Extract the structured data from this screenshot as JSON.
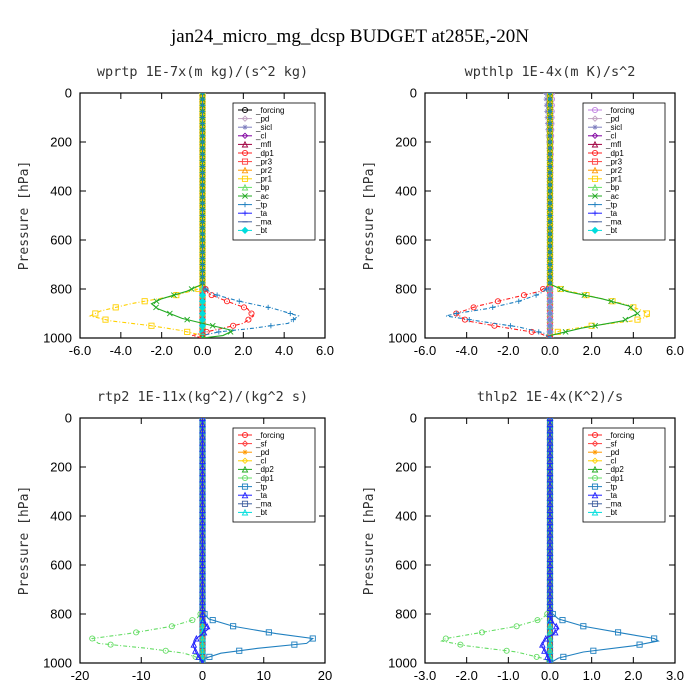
{
  "figure": {
    "title": "jan24_micro_mg_dcsp  BUDGET at285E,-20N"
  },
  "chart_data": [
    {
      "type": "line",
      "title": "wprtp  1E-7x(m kg)/(s^2 kg)",
      "ylabel": "Pressure [hPa]",
      "xlim": [
        -6,
        6
      ],
      "ylim": [
        1000,
        0
      ],
      "xticks": [
        "-6.0",
        "-4.0",
        "-2.0",
        "0.0",
        "2.0",
        "4.0",
        "6.0"
      ],
      "xtick_values": [
        -6,
        -4,
        -2,
        0,
        2,
        4,
        6
      ],
      "yticks": [
        "0",
        "200",
        "400",
        "600",
        "800",
        "1000"
      ],
      "ytick_values": [
        0,
        200,
        400,
        600,
        800,
        1000
      ],
      "legend": {
        "position": "top-right"
      },
      "series": [
        {
          "name": "_forcing",
          "color": "#000000",
          "x": [
            0,
            0,
            0
          ],
          "y": [
            0,
            800,
            1000
          ]
        },
        {
          "name": "_pd",
          "color": "#c0a0c0",
          "x": [
            0,
            0
          ],
          "y": [
            0,
            1000
          ]
        },
        {
          "name": "_sicl",
          "color": "#8080c0",
          "x": [
            0,
            0
          ],
          "y": [
            0,
            1000
          ]
        },
        {
          "name": "_cl",
          "color": "#8000a0",
          "x": [
            0,
            0
          ],
          "y": [
            0,
            1000
          ]
        },
        {
          "name": "_mfl",
          "color": "#a00040",
          "x": [
            0,
            0
          ],
          "y": [
            0,
            1000
          ]
        },
        {
          "name": "_dp1",
          "color": "#ff2020",
          "x": [
            0,
            0,
            0.3,
            1.2,
            2.2,
            2.5,
            2.0,
            1.0,
            0.2,
            -0.5,
            0.0
          ],
          "y": [
            0,
            780,
            820,
            850,
            880,
            910,
            940,
            960,
            975,
            990,
            1000
          ]
        },
        {
          "name": "_pr3",
          "color": "#ff4040",
          "x": [
            0,
            0
          ],
          "y": [
            0,
            1000
          ]
        },
        {
          "name": "_pr2",
          "color": "#ff9900",
          "x": [
            0,
            0
          ],
          "y": [
            0,
            1000
          ]
        },
        {
          "name": "_pr1",
          "color": "#ffd000",
          "x": [
            0,
            0,
            -0.2,
            -1.5,
            -3.5,
            -5.0,
            -5.5,
            -4.5,
            -2.5,
            -1.0,
            0.0
          ],
          "y": [
            0,
            780,
            800,
            830,
            860,
            890,
            910,
            930,
            950,
            970,
            990
          ]
        },
        {
          "name": "_bp",
          "color": "#66dd66",
          "x": [
            0,
            0
          ],
          "y": [
            0,
            1000
          ]
        },
        {
          "name": "_ac",
          "color": "#22aa22",
          "x": [
            0,
            0,
            -0.8,
            -2.0,
            -2.5,
            -2.2,
            -1.0,
            0.5,
            1.5,
            1.0,
            0.0
          ],
          "y": [
            0,
            780,
            810,
            840,
            860,
            880,
            920,
            950,
            970,
            990,
            1000
          ]
        },
        {
          "name": "_tp",
          "color": "#2080c0",
          "x": [
            0,
            0,
            0.5,
            1.8,
            3.5,
            4.7,
            4.2,
            2.5,
            0.8,
            0.0
          ],
          "y": [
            0,
            790,
            820,
            850,
            880,
            910,
            940,
            960,
            975,
            990
          ]
        },
        {
          "name": "_ta",
          "color": "#2020ff",
          "x": [
            0,
            0
          ],
          "y": [
            0,
            1000
          ]
        },
        {
          "name": "_ma",
          "color": "#4060a0",
          "x": [
            0,
            0
          ],
          "y": [
            0,
            1000
          ]
        },
        {
          "name": "_bt",
          "color": "#00dddd",
          "x": [
            0,
            0
          ],
          "y": [
            0,
            1000
          ]
        }
      ]
    },
    {
      "type": "line",
      "title": "wpthlp  1E-4x(m K)/s^2",
      "ylabel": "Pressure [hPa]",
      "xlim": [
        -6,
        6
      ],
      "ylim": [
        1000,
        0
      ],
      "xticks": [
        "-6.0",
        "-4.0",
        "-2.0",
        "0.0",
        "2.0",
        "4.0",
        "6.0"
      ],
      "xtick_values": [
        -6,
        -4,
        -2,
        0,
        2,
        4,
        6
      ],
      "yticks": [
        "0",
        "200",
        "400",
        "600",
        "800",
        "1000"
      ],
      "ytick_values": [
        0,
        200,
        400,
        600,
        800,
        1000
      ],
      "legend": {
        "position": "top-right"
      },
      "series": [
        {
          "name": "_forcing",
          "color": "#c080e0",
          "x": [
            0.1,
            0,
            0
          ],
          "y": [
            0,
            400,
            1000
          ]
        },
        {
          "name": "_pd",
          "color": "#c0a0c0",
          "x": [
            0,
            0
          ],
          "y": [
            0,
            1000
          ]
        },
        {
          "name": "_sicl",
          "color": "#8080c0",
          "x": [
            -0.2,
            0,
            0
          ],
          "y": [
            0,
            300,
            1000
          ]
        },
        {
          "name": "_cl",
          "color": "#8000a0",
          "x": [
            0,
            0
          ],
          "y": [
            0,
            1000
          ]
        },
        {
          "name": "_mfl",
          "color": "#a00040",
          "x": [
            0,
            0
          ],
          "y": [
            0,
            1000
          ]
        },
        {
          "name": "_dp1",
          "color": "#ff2020",
          "x": [
            0,
            0,
            -0.5,
            -2.0,
            -3.5,
            -4.5,
            -4.0,
            -2.0,
            -0.5,
            0.0
          ],
          "y": [
            0,
            780,
            810,
            840,
            870,
            900,
            930,
            960,
            980,
            1000
          ]
        },
        {
          "name": "_pr3",
          "color": "#ff4040",
          "x": [
            0,
            0
          ],
          "y": [
            0,
            1000
          ]
        },
        {
          "name": "_pr2",
          "color": "#ff9900",
          "x": [
            0,
            0
          ],
          "y": [
            0,
            1000
          ]
        },
        {
          "name": "_pr1",
          "color": "#ffd000",
          "x": [
            0,
            0,
            0.5,
            2.0,
            3.5,
            4.5,
            4.8,
            4.0,
            2.0,
            0.5,
            0.0
          ],
          "y": [
            0,
            780,
            800,
            830,
            860,
            890,
            910,
            930,
            950,
            970,
            990
          ]
        },
        {
          "name": "_bp",
          "color": "#66dd66",
          "x": [
            0,
            0
          ],
          "y": [
            0,
            1000
          ]
        },
        {
          "name": "_ac",
          "color": "#22aa22",
          "x": [
            0,
            0,
            0.8,
            2.5,
            3.8,
            4.2,
            3.5,
            1.5,
            0.0
          ],
          "y": [
            0,
            780,
            810,
            840,
            870,
            900,
            930,
            960,
            990
          ]
        },
        {
          "name": "_tp",
          "color": "#2080c0",
          "x": [
            0,
            0,
            -0.5,
            -1.5,
            -3.0,
            -4.5,
            -5.0,
            -3.5,
            -1.5,
            -0.3,
            0.0
          ],
          "y": [
            0,
            790,
            820,
            850,
            880,
            900,
            910,
            930,
            955,
            980,
            1000
          ]
        },
        {
          "name": "_ta",
          "color": "#2020ff",
          "x": [
            0,
            0
          ],
          "y": [
            0,
            1000
          ]
        },
        {
          "name": "_ma",
          "color": "#4060a0",
          "x": [
            0,
            0
          ],
          "y": [
            0,
            1000
          ]
        },
        {
          "name": "_bt",
          "color": "#00dddd",
          "x": [
            0,
            0
          ],
          "y": [
            0,
            1000
          ]
        }
      ]
    },
    {
      "type": "line",
      "title": "rtp2  1E-11x(kg^2)/(kg^2 s)",
      "ylabel": "Pressure [hPa]",
      "xlim": [
        -20,
        20
      ],
      "ylim": [
        1000,
        0
      ],
      "xticks": [
        "-20",
        "-10",
        "0",
        "10",
        "20"
      ],
      "xtick_values": [
        -20,
        -10,
        0,
        10,
        20
      ],
      "yticks": [
        "0",
        "200",
        "400",
        "600",
        "800",
        "1000"
      ],
      "ytick_values": [
        0,
        200,
        400,
        600,
        800,
        1000
      ],
      "legend": {
        "position": "top-right"
      },
      "series": [
        {
          "name": "_forcing",
          "color": "#ff2020",
          "x": [
            0,
            0
          ],
          "y": [
            0,
            1000
          ]
        },
        {
          "name": "_sf",
          "color": "#ff4040",
          "x": [
            0,
            0
          ],
          "y": [
            0,
            1000
          ]
        },
        {
          "name": "_pd",
          "color": "#ff9900",
          "x": [
            0,
            0
          ],
          "y": [
            0,
            1000
          ]
        },
        {
          "name": "_cl",
          "color": "#ffd000",
          "x": [
            0,
            0
          ],
          "y": [
            0,
            1000
          ]
        },
        {
          "name": "_dp2",
          "color": "#22aa22",
          "x": [
            0,
            0
          ],
          "y": [
            0,
            1000
          ]
        },
        {
          "name": "_dp1",
          "color": "#66dd66",
          "x": [
            0,
            0,
            -1.0,
            -5.0,
            -12.0,
            -18.0,
            -17.0,
            -9.0,
            -3.0,
            -0.5,
            0.0
          ],
          "y": [
            0,
            790,
            820,
            850,
            880,
            900,
            920,
            940,
            960,
            980,
            1000
          ]
        },
        {
          "name": "_tp",
          "color": "#2080c0",
          "x": [
            0,
            0,
            1.0,
            5.0,
            12.0,
            18.0,
            17.0,
            9.0,
            3.0,
            0.5,
            0.0
          ],
          "y": [
            0,
            790,
            820,
            850,
            880,
            900,
            920,
            940,
            960,
            980,
            1000
          ]
        },
        {
          "name": "_ta",
          "color": "#2020ff",
          "x": [
            0,
            0,
            0.5,
            1.0,
            0.0,
            -1.0,
            -1.5,
            -1.0,
            0.0
          ],
          "y": [
            0,
            820,
            840,
            860,
            880,
            900,
            930,
            960,
            1000
          ]
        },
        {
          "name": "_ma",
          "color": "#4060a0",
          "x": [
            0,
            0
          ],
          "y": [
            0,
            1000
          ]
        },
        {
          "name": "_bt",
          "color": "#00dddd",
          "x": [
            0,
            0
          ],
          "y": [
            0,
            1000
          ]
        }
      ]
    },
    {
      "type": "line",
      "title": "thlp2  1E-4x(K^2)/s",
      "ylabel": "Pressure [hPa]",
      "xlim": [
        -3,
        3
      ],
      "ylim": [
        1000,
        0
      ],
      "xticks": [
        "-3.0",
        "-2.0",
        "-1.0",
        "0.0",
        "1.0",
        "2.0",
        "3.0"
      ],
      "xtick_values": [
        -3,
        -2,
        -1,
        0,
        1,
        2,
        3
      ],
      "yticks": [
        "0",
        "200",
        "400",
        "600",
        "800",
        "1000"
      ],
      "ytick_values": [
        0,
        200,
        400,
        600,
        800,
        1000
      ],
      "legend": {
        "position": "top-right"
      },
      "series": [
        {
          "name": "_forcing",
          "color": "#ff2020",
          "x": [
            0,
            0
          ],
          "y": [
            0,
            1000
          ]
        },
        {
          "name": "_sf",
          "color": "#ff4040",
          "x": [
            0,
            0
          ],
          "y": [
            0,
            1000
          ]
        },
        {
          "name": "_pd",
          "color": "#ff9900",
          "x": [
            0,
            0
          ],
          "y": [
            0,
            1000
          ]
        },
        {
          "name": "_cl",
          "color": "#ffd000",
          "x": [
            0,
            0
          ],
          "y": [
            0,
            1000
          ]
        },
        {
          "name": "_dp2",
          "color": "#22aa22",
          "x": [
            0,
            0
          ],
          "y": [
            0,
            1000
          ]
        },
        {
          "name": "_dp1",
          "color": "#66dd66",
          "x": [
            0,
            0,
            -0.2,
            -0.8,
            -1.8,
            -2.5,
            -2.6,
            -2.0,
            -0.8,
            -0.2,
            0.0
          ],
          "y": [
            0,
            790,
            820,
            850,
            880,
            900,
            910,
            930,
            955,
            980,
            1000
          ]
        },
        {
          "name": "_tp",
          "color": "#2080c0",
          "x": [
            0,
            0,
            0.2,
            0.8,
            1.8,
            2.5,
            2.6,
            2.0,
            0.8,
            0.2,
            0.0
          ],
          "y": [
            0,
            790,
            820,
            850,
            880,
            900,
            910,
            930,
            955,
            980,
            1000
          ]
        },
        {
          "name": "_ta",
          "color": "#2020ff",
          "x": [
            0,
            0,
            0.1,
            0.2,
            0.1,
            -0.1,
            -0.2,
            -0.1,
            0.0
          ],
          "y": [
            0,
            820,
            840,
            860,
            880,
            900,
            930,
            960,
            1000
          ]
        },
        {
          "name": "_ma",
          "color": "#4060a0",
          "x": [
            0,
            0
          ],
          "y": [
            0,
            1000
          ]
        },
        {
          "name": "_bt",
          "color": "#00dddd",
          "x": [
            0,
            0
          ],
          "y": [
            0,
            1000
          ]
        }
      ]
    }
  ]
}
